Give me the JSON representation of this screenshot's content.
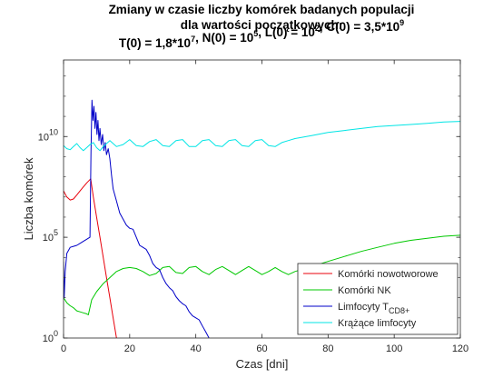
{
  "chart_data": {
    "type": "line",
    "title_line1": "Zmiany w czasie liczby komórek badanych populacji",
    "title_line2": "dla wartości początkowych:",
    "title_line3_parts": [
      {
        "text": "T(0) = 1,8*10",
        "sup": "7"
      },
      {
        "text": ", N(0) = 10",
        "sup": "5"
      },
      {
        "text": ", L(0) = 10",
        "sup": "2"
      },
      {
        "text": ", C(0) = 3,5*10",
        "sup": "9"
      }
    ],
    "xlabel": "Czas [dni]",
    "ylabel": "Liczba komórek",
    "xlim": [
      0,
      120
    ],
    "ylim_log10": [
      0,
      13.8
    ],
    "yscale": "log",
    "x_ticks": [
      "0",
      "20",
      "40",
      "60",
      "80",
      "100",
      "120"
    ],
    "y_ticks": [
      {
        "base": "10",
        "exp": "0"
      },
      {
        "base": "10",
        "exp": "5"
      },
      {
        "base": "10",
        "exp": "10"
      }
    ],
    "grid": false,
    "legend_position": "bottom-right",
    "series": [
      {
        "name": "Komórki nowotworowe",
        "color": "#e8000b",
        "points_log10": [
          [
            0,
            7.3
          ],
          [
            1,
            7.0
          ],
          [
            2,
            6.85
          ],
          [
            3,
            6.9
          ],
          [
            4,
            7.1
          ],
          [
            5,
            7.3
          ],
          [
            6,
            7.5
          ],
          [
            7,
            7.7
          ],
          [
            8.2,
            7.9
          ],
          [
            9,
            7.0
          ],
          [
            10,
            6.0
          ],
          [
            11,
            5.0
          ],
          [
            12,
            4.0
          ],
          [
            13,
            3.0
          ],
          [
            14,
            2.0
          ],
          [
            15,
            1.0
          ],
          [
            16,
            0.0
          ]
        ]
      },
      {
        "name": "Komórki NK",
        "color": "#00c800",
        "points_log10": [
          [
            0,
            2.0
          ],
          [
            1,
            1.75
          ],
          [
            2,
            1.6
          ],
          [
            3,
            1.5
          ],
          [
            4,
            1.35
          ],
          [
            5,
            1.3
          ],
          [
            6,
            1.25
          ],
          [
            7,
            1.2
          ],
          [
            7.5,
            1.15
          ],
          [
            8.5,
            1.9
          ],
          [
            10,
            2.3
          ],
          [
            12,
            2.7
          ],
          [
            14,
            3.0
          ],
          [
            16,
            3.3
          ],
          [
            18,
            3.45
          ],
          [
            20,
            3.5
          ],
          [
            22,
            3.45
          ],
          [
            24,
            3.3
          ],
          [
            26,
            3.1
          ],
          [
            28,
            3.2
          ],
          [
            30,
            3.5
          ],
          [
            32,
            3.55
          ],
          [
            34,
            3.25
          ],
          [
            36,
            3.2
          ],
          [
            38,
            3.5
          ],
          [
            40,
            3.55
          ],
          [
            42,
            3.3
          ],
          [
            44,
            3.15
          ],
          [
            46,
            3.4
          ],
          [
            48,
            3.55
          ],
          [
            50,
            3.35
          ],
          [
            52,
            3.15
          ],
          [
            54,
            3.35
          ],
          [
            56,
            3.55
          ],
          [
            58,
            3.35
          ],
          [
            60,
            3.15
          ],
          [
            62,
            3.3
          ],
          [
            64,
            3.5
          ],
          [
            66,
            3.3
          ],
          [
            68,
            3.15
          ],
          [
            70,
            3.3
          ],
          [
            75,
            3.55
          ],
          [
            80,
            3.8
          ],
          [
            85,
            4.05
          ],
          [
            90,
            4.3
          ],
          [
            95,
            4.5
          ],
          [
            100,
            4.7
          ],
          [
            105,
            4.85
          ],
          [
            110,
            4.95
          ],
          [
            115,
            5.05
          ],
          [
            120,
            5.1
          ]
        ]
      },
      {
        "name": "Limfocyty T",
        "name_sub": "CD8+",
        "color": "#0000c8",
        "points_log10": [
          [
            0,
            3.8
          ],
          [
            0.2,
            2.0
          ],
          [
            0.5,
            3.3
          ],
          [
            1,
            4.2
          ],
          [
            2,
            4.5
          ],
          [
            3,
            4.55
          ],
          [
            4,
            4.6
          ],
          [
            5,
            4.7
          ],
          [
            6,
            4.8
          ],
          [
            7,
            4.9
          ],
          [
            8,
            5.0
          ],
          [
            8.3,
            9.2
          ],
          [
            8.6,
            11.8
          ],
          [
            8.9,
            10.8
          ],
          [
            9.2,
            11.5
          ],
          [
            9.5,
            10.4
          ],
          [
            9.8,
            11.2
          ],
          [
            10.1,
            10.1
          ],
          [
            10.4,
            10.8
          ],
          [
            10.7,
            9.8
          ],
          [
            11,
            10.4
          ],
          [
            11.4,
            9.6
          ],
          [
            11.8,
            10.1
          ],
          [
            12.2,
            9.3
          ],
          [
            12.6,
            9.7
          ],
          [
            13,
            9.1
          ],
          [
            13.5,
            9.4
          ],
          [
            14,
            8.9
          ],
          [
            14.5,
            8.1
          ],
          [
            15,
            7.4
          ],
          [
            16,
            6.8
          ],
          [
            17,
            6.2
          ],
          [
            18,
            5.9
          ],
          [
            19,
            5.6
          ],
          [
            20,
            5.45
          ],
          [
            21,
            5.4
          ],
          [
            22,
            5.0
          ],
          [
            23,
            4.6
          ],
          [
            24,
            4.5
          ],
          [
            25,
            4.4
          ],
          [
            26,
            4.1
          ],
          [
            27,
            3.7
          ],
          [
            28,
            3.5
          ],
          [
            29,
            3.4
          ],
          [
            30,
            3.0
          ],
          [
            31,
            2.7
          ],
          [
            32,
            2.5
          ],
          [
            33,
            2.35
          ],
          [
            34,
            2.05
          ],
          [
            35,
            1.85
          ],
          [
            36,
            1.7
          ],
          [
            37,
            1.6
          ],
          [
            38,
            1.3
          ],
          [
            39,
            1.1
          ],
          [
            40,
            1.0
          ],
          [
            41,
            0.9
          ],
          [
            42,
            0.6
          ],
          [
            43,
            0.3
          ],
          [
            44,
            0.0
          ]
        ]
      },
      {
        "name": "Krążące limfocyty",
        "color": "#00e5e5",
        "points_log10": [
          [
            0,
            9.55
          ],
          [
            1,
            9.4
          ],
          [
            2,
            9.35
          ],
          [
            3,
            9.5
          ],
          [
            4,
            9.65
          ],
          [
            5,
            9.45
          ],
          [
            6,
            9.3
          ],
          [
            7,
            9.45
          ],
          [
            8,
            9.6
          ],
          [
            9,
            9.7
          ],
          [
            10,
            9.45
          ],
          [
            11,
            9.3
          ],
          [
            12,
            9.5
          ],
          [
            14,
            9.8
          ],
          [
            16,
            9.5
          ],
          [
            18,
            9.6
          ],
          [
            20,
            9.85
          ],
          [
            22,
            9.55
          ],
          [
            24,
            9.5
          ],
          [
            26,
            9.75
          ],
          [
            28,
            9.85
          ],
          [
            30,
            9.55
          ],
          [
            32,
            9.5
          ],
          [
            34,
            9.8
          ],
          [
            36,
            9.85
          ],
          [
            38,
            9.5
          ],
          [
            40,
            9.5
          ],
          [
            42,
            9.8
          ],
          [
            44,
            9.85
          ],
          [
            46,
            9.55
          ],
          [
            48,
            9.5
          ],
          [
            50,
            9.8
          ],
          [
            52,
            9.85
          ],
          [
            54,
            9.55
          ],
          [
            56,
            9.5
          ],
          [
            58,
            9.8
          ],
          [
            60,
            9.85
          ],
          [
            62,
            9.55
          ],
          [
            64,
            9.5
          ],
          [
            66,
            9.7
          ],
          [
            68,
            9.8
          ],
          [
            70,
            9.9
          ],
          [
            75,
            10.05
          ],
          [
            80,
            10.2
          ],
          [
            85,
            10.3
          ],
          [
            90,
            10.4
          ],
          [
            95,
            10.5
          ],
          [
            100,
            10.55
          ],
          [
            105,
            10.6
          ],
          [
            110,
            10.65
          ],
          [
            115,
            10.72
          ],
          [
            120,
            10.75
          ]
        ]
      }
    ]
  }
}
